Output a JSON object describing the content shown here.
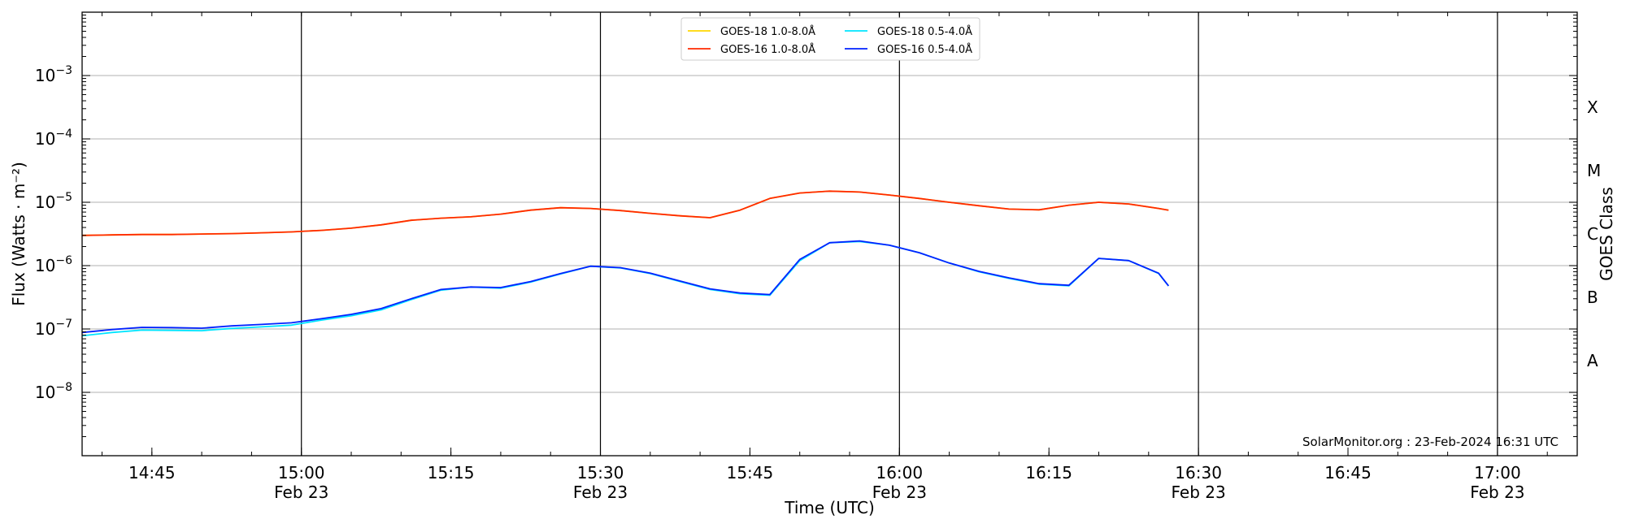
{
  "chart_data": {
    "type": "line",
    "xlabel": "Time (UTC)",
    "ylabel": "Flux (Watts · m⁻²)",
    "ylabel_right": "GOES Class",
    "y_scale": "log",
    "ylim": [
      1e-09,
      0.01
    ],
    "xlim": [
      "2024-02-23T14:38",
      "2024-02-23T17:08"
    ],
    "x_ticks": [
      {
        "time": "14:45",
        "date": ""
      },
      {
        "time": "15:00",
        "date": "Feb 23"
      },
      {
        "time": "15:15",
        "date": ""
      },
      {
        "time": "15:30",
        "date": "Feb 23"
      },
      {
        "time": "15:45",
        "date": ""
      },
      {
        "time": "16:00",
        "date": "Feb 23"
      },
      {
        "time": "16:15",
        "date": ""
      },
      {
        "time": "16:30",
        "date": "Feb 23"
      },
      {
        "time": "16:45",
        "date": ""
      },
      {
        "time": "17:00",
        "date": "Feb 23"
      }
    ],
    "y_ticks": [
      {
        "value": 1e-08,
        "base": "10",
        "exp": "−8"
      },
      {
        "value": 1e-07,
        "base": "10",
        "exp": "−7"
      },
      {
        "value": 1e-06,
        "base": "10",
        "exp": "−6"
      },
      {
        "value": 1e-05,
        "base": "10",
        "exp": "−5"
      },
      {
        "value": 0.0001,
        "base": "10",
        "exp": "−4"
      },
      {
        "value": 0.001,
        "base": "10",
        "exp": "−3"
      }
    ],
    "goes_classes": [
      {
        "label": "A",
        "value": 3.16e-08
      },
      {
        "label": "B",
        "value": 3.16e-07
      },
      {
        "label": "C",
        "value": 3.16e-06
      },
      {
        "label": "M",
        "value": 3.16e-05
      },
      {
        "label": "X",
        "value": 0.000316
      }
    ],
    "grid": true,
    "legend_position": "top-center",
    "credit": "SolarMonitor.org : 23-Feb-2024 16:31 UTC",
    "x_times": [
      "14:38",
      "14:41",
      "14:44",
      "14:47",
      "14:50",
      "14:53",
      "14:56",
      "14:59",
      "15:02",
      "15:05",
      "15:08",
      "15:11",
      "15:14",
      "15:17",
      "15:20",
      "15:23",
      "15:26",
      "15:29",
      "15:32",
      "15:35",
      "15:38",
      "15:41",
      "15:44",
      "15:47",
      "15:50",
      "15:53",
      "15:56",
      "15:59",
      "16:02",
      "16:05",
      "16:08",
      "16:11",
      "16:14",
      "16:17",
      "16:20",
      "16:23",
      "16:26",
      "16:27"
    ],
    "series": [
      {
        "name": "GOES-18 1.0-8.0Å",
        "color": "#ffd700",
        "values": [
          3e-06,
          3.05e-06,
          3.1e-06,
          3.1e-06,
          3.15e-06,
          3.2e-06,
          3.3e-06,
          3.4e-06,
          3.6e-06,
          3.9e-06,
          4.4e-06,
          5.2e-06,
          5.6e-06,
          5.9e-06,
          6.5e-06,
          7.5e-06,
          8.2e-06,
          8e-06,
          7.4e-06,
          6.7e-06,
          6.1e-06,
          5.7e-06,
          7.5e-06,
          1.15e-05,
          1.4e-05,
          1.5e-05,
          1.45e-05,
          1.3e-05,
          1.15e-05,
          1e-05,
          8.8e-06,
          7.8e-06,
          7.6e-06,
          9e-06,
          1e-05,
          9.4e-06,
          8e-06,
          7.5e-06
        ]
      },
      {
        "name": "GOES-16 1.0-8.0Å",
        "color": "#ff2a00",
        "values": [
          3e-06,
          3.05e-06,
          3.1e-06,
          3.1e-06,
          3.15e-06,
          3.2e-06,
          3.3e-06,
          3.4e-06,
          3.6e-06,
          3.9e-06,
          4.4e-06,
          5.2e-06,
          5.6e-06,
          5.9e-06,
          6.5e-06,
          7.5e-06,
          8.2e-06,
          8e-06,
          7.4e-06,
          6.7e-06,
          6.1e-06,
          5.7e-06,
          7.5e-06,
          1.15e-05,
          1.4e-05,
          1.5e-05,
          1.45e-05,
          1.3e-05,
          1.15e-05,
          1e-05,
          8.8e-06,
          7.8e-06,
          7.6e-06,
          9e-06,
          1e-05,
          9.4e-06,
          8e-06,
          7.5e-06
        ]
      },
      {
        "name": "GOES-18 0.5-4.0Å",
        "color": "#00e5ff",
        "values": [
          7.8e-08,
          8.8e-08,
          9.6e-08,
          9.5e-08,
          9.4e-08,
          1.02e-07,
          1.08e-07,
          1.15e-07,
          1.38e-07,
          1.62e-07,
          2e-07,
          2.9e-07,
          4.1e-07,
          4.6e-07,
          4.4e-07,
          5.5e-07,
          7.4e-07,
          9.8e-07,
          9.2e-07,
          7.5e-07,
          5.6e-07,
          4.2e-07,
          3.6e-07,
          3.4e-07,
          1.2e-06,
          2.3e-06,
          2.4e-06,
          2.1e-06,
          1.6e-06,
          1.1e-06,
          8e-07,
          6.3e-07,
          5.1e-07,
          4.8e-07,
          1.3e-06,
          1.2e-06,
          7.5e-07,
          4.8e-07
        ]
      },
      {
        "name": "GOES-16 0.5-4.0Å",
        "color": "#0022ff",
        "values": [
          8.8e-08,
          9.8e-08,
          1.06e-07,
          1.05e-07,
          1.03e-07,
          1.12e-07,
          1.18e-07,
          1.25e-07,
          1.45e-07,
          1.7e-07,
          2.1e-07,
          3e-07,
          4.2e-07,
          4.6e-07,
          4.5e-07,
          5.6e-07,
          7.5e-07,
          9.8e-07,
          9.3e-07,
          7.6e-07,
          5.7e-07,
          4.3e-07,
          3.7e-07,
          3.5e-07,
          1.25e-06,
          2.3e-06,
          2.45e-06,
          2.1e-06,
          1.6e-06,
          1.1e-06,
          8.1e-07,
          6.4e-07,
          5.2e-07,
          4.9e-07,
          1.3e-06,
          1.2e-06,
          7.6e-07,
          4.8e-07
        ]
      }
    ]
  }
}
